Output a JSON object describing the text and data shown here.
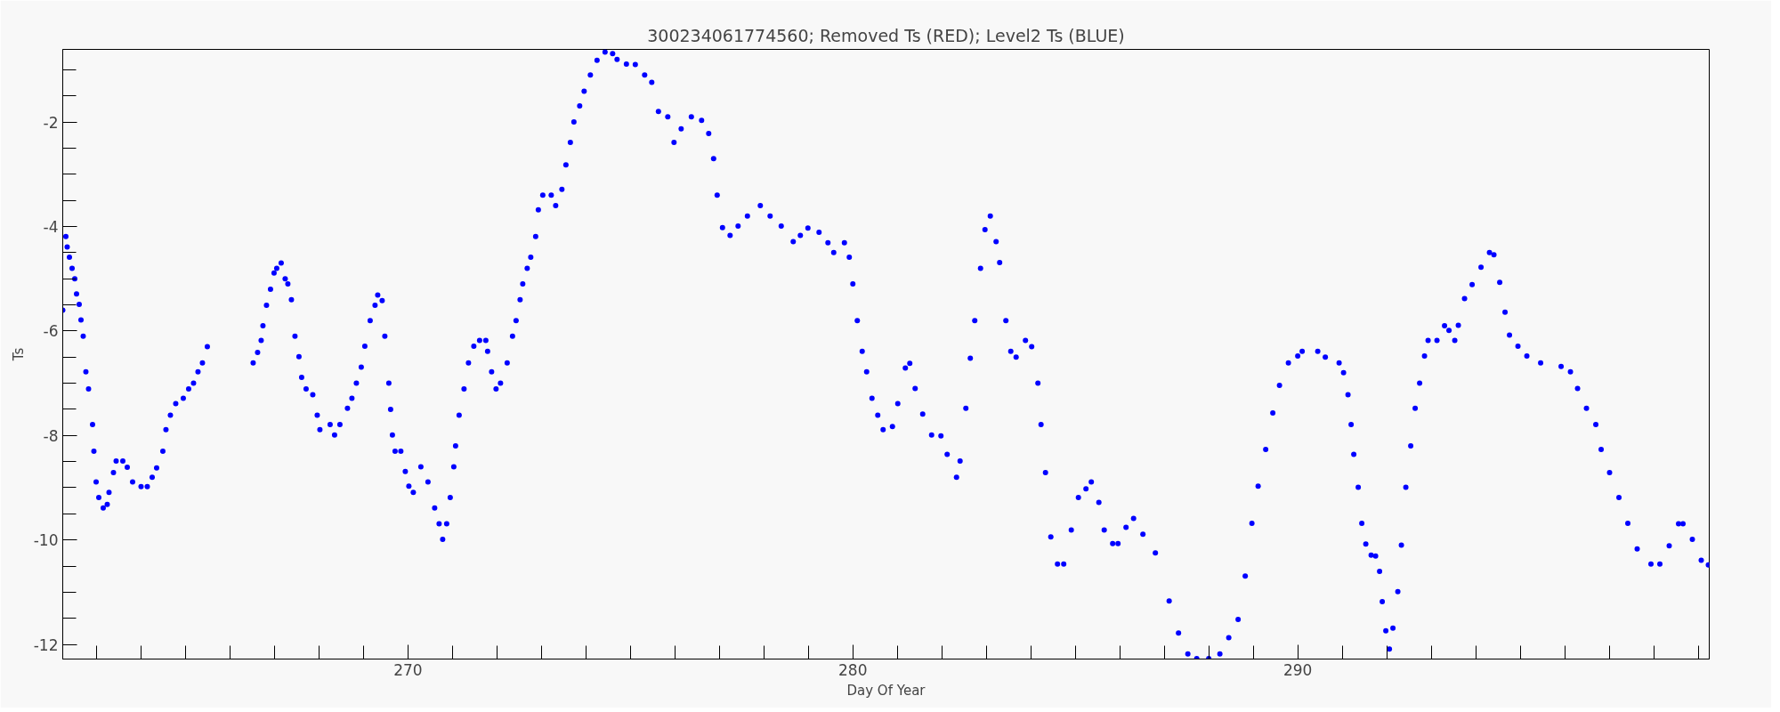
{
  "chart_data": {
    "type": "scatter",
    "title": "300234061774560; Removed Ts (RED); Level2 Ts (BLUE)",
    "xlabel": "Day Of Year",
    "ylabel": "Ts",
    "marker": "circle",
    "grid": false,
    "xlim": [
      262.24,
      299.25
    ],
    "ylim": [
      -12.28,
      -0.61
    ],
    "xticks": [
      270,
      280,
      290
    ],
    "yticks": [
      -12,
      -10,
      -8,
      -6,
      -4,
      -2
    ],
    "series": [
      {
        "color": "#0000ff",
        "x": [
          262.24,
          262.31,
          262.34,
          262.39,
          262.45,
          262.51,
          262.55,
          262.61,
          262.65,
          262.7,
          262.76,
          262.82,
          262.91,
          262.94,
          262.99,
          263.05,
          263.15,
          263.24,
          263.28,
          263.38,
          263.44,
          263.59,
          263.69,
          263.81,
          264.0,
          264.14,
          264.25,
          264.35,
          264.49,
          264.56,
          264.66,
          264.78,
          264.95,
          265.07,
          265.18,
          265.28,
          265.38,
          265.49,
          266.52,
          266.62,
          266.7,
          266.74,
          266.82,
          266.91,
          266.99,
          267.05,
          267.15,
          267.24,
          267.3,
          267.38,
          267.46,
          267.55,
          267.61,
          267.71,
          267.86,
          267.96,
          268.02,
          268.25,
          268.35,
          268.47,
          268.64,
          268.74,
          268.84,
          268.95,
          269.03,
          269.15,
          269.26,
          269.32,
          269.42,
          269.48,
          269.57,
          269.61,
          269.65,
          269.71,
          269.84,
          269.94,
          270.02,
          270.12,
          270.29,
          270.45,
          270.6,
          270.7,
          270.78,
          270.87,
          270.95,
          271.03,
          271.07,
          271.15,
          271.26,
          271.36,
          271.48,
          271.61,
          271.75,
          271.79,
          271.88,
          271.98,
          272.08,
          272.23,
          272.35,
          272.43,
          272.52,
          272.58,
          272.68,
          272.76,
          272.87,
          272.93,
          273.03,
          273.22,
          273.32,
          273.46,
          273.55,
          273.65,
          273.73,
          273.86,
          273.96,
          274.1,
          274.25,
          274.43,
          274.6,
          274.7,
          274.91,
          275.11,
          275.32,
          275.48,
          275.63,
          275.84,
          275.98,
          276.14,
          276.37,
          276.6,
          276.76,
          276.87,
          276.95,
          277.07,
          277.24,
          277.42,
          277.63,
          277.92,
          278.14,
          278.39,
          278.66,
          278.82,
          278.99,
          279.24,
          279.44,
          279.57,
          279.81,
          279.92,
          280.0,
          280.1,
          280.21,
          280.31,
          280.43,
          280.56,
          280.68,
          280.89,
          281.01,
          281.18,
          281.28,
          281.4,
          281.57,
          281.77,
          281.98,
          282.12,
          282.33,
          282.41,
          282.54,
          282.64,
          282.74,
          282.87,
          282.97,
          283.09,
          283.22,
          283.3,
          283.44,
          283.55,
          283.67,
          283.88,
          284.02,
          284.16,
          284.23,
          284.33,
          284.45,
          284.6,
          284.74,
          284.91,
          285.07,
          285.24,
          285.36,
          285.53,
          285.65,
          285.84,
          285.96,
          286.14,
          286.31,
          286.52,
          286.8,
          287.11,
          287.32,
          287.53,
          287.73,
          288.0,
          288.25,
          288.45,
          288.66,
          288.82,
          288.97,
          289.11,
          289.28,
          289.44,
          289.59,
          289.79,
          290.0,
          290.1,
          290.45,
          290.62,
          290.93,
          291.03,
          291.13,
          291.2,
          291.26,
          291.36,
          291.44,
          291.53,
          291.65,
          291.75,
          291.84,
          291.9,
          291.98,
          292.06,
          292.14,
          292.25,
          292.33,
          292.43,
          292.54,
          292.64,
          292.74,
          292.85,
          292.93,
          293.13,
          293.3,
          293.4,
          293.53,
          293.61,
          293.75,
          293.92,
          294.12,
          294.31,
          294.41,
          294.54,
          294.66,
          294.76,
          294.95,
          295.15,
          295.46,
          295.92,
          296.13,
          296.29,
          296.49,
          296.7,
          296.82,
          297.01,
          297.22,
          297.42,
          297.63,
          297.94,
          298.14,
          298.35,
          298.56,
          298.66,
          298.87,
          299.07,
          299.23
        ],
        "values": [
          -5.6,
          -4.19,
          -4.39,
          -4.59,
          -4.8,
          -5.0,
          -5.29,
          -5.49,
          -5.79,
          -6.1,
          -6.78,
          -7.11,
          -7.79,
          -8.3,
          -8.89,
          -9.19,
          -9.39,
          -9.32,
          -9.09,
          -8.71,
          -8.49,
          -8.49,
          -8.61,
          -8.89,
          -8.98,
          -8.98,
          -8.8,
          -8.62,
          -8.3,
          -7.89,
          -7.61,
          -7.39,
          -7.29,
          -7.11,
          -7.0,
          -6.78,
          -6.61,
          -6.3,
          -6.61,
          -6.41,
          -6.18,
          -5.9,
          -5.51,
          -5.2,
          -4.89,
          -4.8,
          -4.7,
          -5.0,
          -5.1,
          -5.4,
          -6.1,
          -6.49,
          -6.89,
          -7.11,
          -7.22,
          -7.61,
          -7.89,
          -7.79,
          -7.99,
          -7.79,
          -7.48,
          -7.29,
          -7.0,
          -6.69,
          -6.29,
          -5.8,
          -5.51,
          -5.31,
          -5.42,
          -6.1,
          -7.0,
          -7.5,
          -7.99,
          -8.3,
          -8.3,
          -8.69,
          -8.97,
          -9.09,
          -8.6,
          -8.89,
          -9.39,
          -9.69,
          -9.99,
          -9.69,
          -9.19,
          -8.6,
          -8.2,
          -7.61,
          -7.11,
          -6.61,
          -6.29,
          -6.18,
          -6.18,
          -6.39,
          -6.78,
          -7.11,
          -7.0,
          -6.61,
          -6.1,
          -5.8,
          -5.4,
          -5.1,
          -4.8,
          -4.59,
          -4.19,
          -3.68,
          -3.4,
          -3.4,
          -3.6,
          -3.29,
          -2.82,
          -2.39,
          -2.0,
          -1.69,
          -1.41,
          -1.1,
          -0.82,
          -0.66,
          -0.69,
          -0.8,
          -0.89,
          -0.9,
          -1.1,
          -1.24,
          -1.8,
          -1.9,
          -2.39,
          -2.13,
          -1.9,
          -1.97,
          -2.22,
          -2.7,
          -3.4,
          -4.02,
          -4.17,
          -3.99,
          -3.8,
          -3.6,
          -3.8,
          -3.99,
          -4.29,
          -4.17,
          -4.03,
          -4.11,
          -4.31,
          -4.5,
          -4.31,
          -4.59,
          -5.1,
          -5.8,
          -6.39,
          -6.78,
          -7.29,
          -7.61,
          -7.89,
          -7.83,
          -7.39,
          -6.71,
          -6.62,
          -7.1,
          -7.59,
          -7.99,
          -8.01,
          -8.36,
          -8.8,
          -8.49,
          -7.48,
          -6.52,
          -5.8,
          -4.8,
          -4.06,
          -3.8,
          -4.29,
          -4.69,
          -5.8,
          -6.39,
          -6.5,
          -6.18,
          -6.3,
          -7.0,
          -7.79,
          -8.71,
          -9.94,
          -10.46,
          -10.46,
          -9.81,
          -9.19,
          -9.02,
          -8.89,
          -9.28,
          -9.81,
          -10.07,
          -10.07,
          -9.76,
          -9.59,
          -9.89,
          -10.25,
          -11.17,
          -11.78,
          -12.18,
          -12.27,
          -12.27,
          -12.18,
          -11.87,
          -11.52,
          -10.69,
          -9.68,
          -8.97,
          -8.27,
          -7.57,
          -7.04,
          -6.61,
          -6.48,
          -6.39,
          -6.39,
          -6.5,
          -6.61,
          -6.8,
          -7.22,
          -7.79,
          -8.36,
          -8.99,
          -9.68,
          -10.08,
          -10.29,
          -10.31,
          -10.6,
          -11.18,
          -11.74,
          -12.09,
          -11.69,
          -10.99,
          -10.1,
          -8.99,
          -8.2,
          -7.48,
          -7.0,
          -6.48,
          -6.18,
          -6.18,
          -5.9,
          -5.99,
          -6.18,
          -5.89,
          -5.38,
          -5.11,
          -4.78,
          -4.5,
          -4.54,
          -5.07,
          -5.64,
          -6.08,
          -6.29,
          -6.48,
          -6.61,
          -6.68,
          -6.78,
          -7.1,
          -7.48,
          -7.79,
          -8.27,
          -8.71,
          -9.19,
          -9.68,
          -10.17,
          -10.46,
          -10.46,
          -10.11,
          -9.69,
          -9.69,
          -9.99,
          -10.39,
          -10.48
        ]
      }
    ]
  }
}
